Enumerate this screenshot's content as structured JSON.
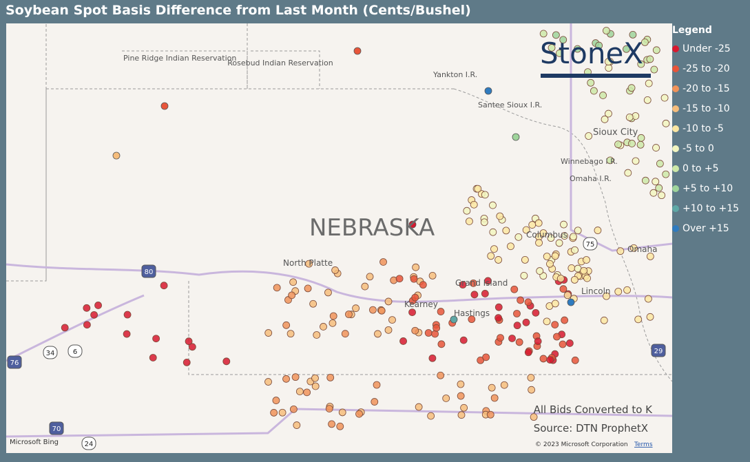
{
  "header": {
    "title": "Soybean Spot Basis Difference from Last Month (Cents/Bushel)"
  },
  "legend": {
    "title": "Legend",
    "items": [
      {
        "label": "Under -25",
        "color": "#d7192f"
      },
      {
        "label": "-25 to -20",
        "color": "#e8553a"
      },
      {
        "label": "-20 to -15",
        "color": "#f0935a"
      },
      {
        "label": "-15 to -10",
        "color": "#f6bd7c"
      },
      {
        "label": "-10 to -5",
        "color": "#fbe6a2"
      },
      {
        "label": "-5 to 0",
        "color": "#f2f5c0"
      },
      {
        "label": "0 to +5",
        "color": "#cde8a8"
      },
      {
        "label": "+5 to +10",
        "color": "#9fd49b"
      },
      {
        "label": "+10 to +15",
        "color": "#5fa8a6"
      },
      {
        "label": "Over +15",
        "color": "#2f7bbf"
      }
    ]
  },
  "map": {
    "state": "NEBRASKA",
    "places": [
      "Pine Ridge Indian Reservation",
      "Rosebud Indian Reservation",
      "Yankton I.R.",
      "Santee Sioux I.R.",
      "Sioux City",
      "Winnebago I.R.",
      "Omaha I.R.",
      "North Platte",
      "Columbus",
      "Grand Island",
      "Kearney",
      "Hastings",
      "Omaha",
      "Lincoln"
    ],
    "shields": [
      "80",
      "76",
      "34",
      "6",
      "70",
      "24",
      "29",
      "75"
    ],
    "logo": "StoneX",
    "notes": [
      "All Bids Converted to K",
      "Source: DTN ProphetX"
    ],
    "attribution": "Microsoft Bing",
    "copyright": "© 2023 Microsoft Corporation",
    "terms": "Terms"
  }
}
